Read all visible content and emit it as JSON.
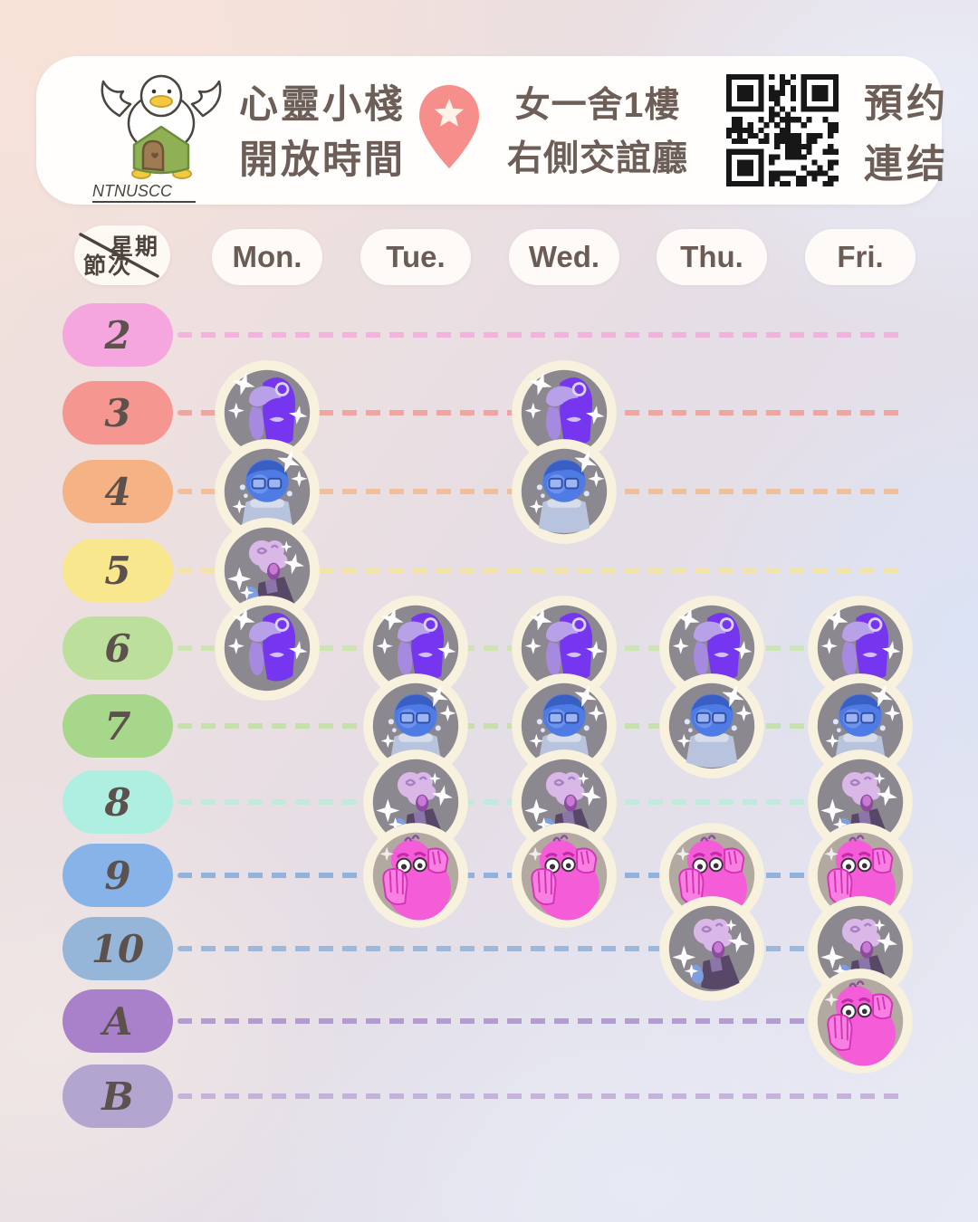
{
  "header": {
    "logo": {
      "text": "NTNUSCC",
      "icon": "duck-on-house-logo"
    },
    "title": {
      "line1": "心靈小棧",
      "line2": "開放時間"
    },
    "location_pin_icon": "map-pin-star-icon",
    "location": {
      "line1": "女一舍1樓",
      "line2": "右側交誼廳"
    },
    "qr_code_label": "booking-qr-code",
    "booking": {
      "line1": "預约",
      "line2": "連结"
    }
  },
  "table": {
    "corner": {
      "top_right_label": "星期",
      "bottom_left_label": "節次"
    },
    "days": [
      "Mon.",
      "Tue.",
      "Wed.",
      "Thu.",
      "Fri."
    ],
    "periods": [
      {
        "label": "2",
        "pill_color": "#f5a6de",
        "line_color": "#f3abdb"
      },
      {
        "label": "3",
        "pill_color": "#f59690",
        "line_color": "#f19b94"
      },
      {
        "label": "4",
        "pill_color": "#f5b285",
        "line_color": "#f2ba8d"
      },
      {
        "label": "5",
        "pill_color": "#f9e78e",
        "line_color": "#f4e49c"
      },
      {
        "label": "6",
        "pill_color": "#bce09b",
        "line_color": "#c8e6aa"
      },
      {
        "label": "7",
        "pill_color": "#a7d78a",
        "line_color": "#c0e1a2"
      },
      {
        "label": "8",
        "pill_color": "#aeefe1",
        "line_color": "#b9ecd9"
      },
      {
        "label": "9",
        "pill_color": "#87b3e8",
        "line_color": "#84aadb"
      },
      {
        "label": "10",
        "pill_color": "#96b6d9",
        "line_color": "#92b1d8"
      },
      {
        "label": "A",
        "pill_color": "#a981ca",
        "line_color": "#aa8fcb"
      },
      {
        "label": "B",
        "pill_color": "#b2a5cf",
        "line_color": "#bfaad8"
      }
    ]
  },
  "characters": {
    "purple": {
      "name": "purple-character-sticker",
      "color": "#7636ef"
    },
    "blue": {
      "name": "blue-crying-character-sticker",
      "color": "#4f7ce4"
    },
    "lilac": {
      "name": "lilac-yawning-character-sticker",
      "color": "#d9b8e8"
    },
    "pink": {
      "name": "pink-worried-character-sticker",
      "color": "#f55cd7"
    }
  },
  "schedule": [
    {
      "period": "3",
      "day": "Mon.",
      "character": "purple"
    },
    {
      "period": "3",
      "day": "Wed.",
      "character": "purple"
    },
    {
      "period": "4",
      "day": "Mon.",
      "character": "blue"
    },
    {
      "period": "4",
      "day": "Wed.",
      "character": "blue"
    },
    {
      "period": "5",
      "day": "Mon.",
      "character": "lilac"
    },
    {
      "period": "6",
      "day": "Mon.",
      "character": "purple"
    },
    {
      "period": "6",
      "day": "Tue.",
      "character": "purple"
    },
    {
      "period": "6",
      "day": "Wed.",
      "character": "purple"
    },
    {
      "period": "6",
      "day": "Thu.",
      "character": "purple"
    },
    {
      "period": "6",
      "day": "Fri.",
      "character": "purple"
    },
    {
      "period": "7",
      "day": "Tue.",
      "character": "blue"
    },
    {
      "period": "7",
      "day": "Wed.",
      "character": "blue"
    },
    {
      "period": "7",
      "day": "Thu.",
      "character": "blue"
    },
    {
      "period": "7",
      "day": "Fri.",
      "character": "blue"
    },
    {
      "period": "8",
      "day": "Tue.",
      "character": "lilac"
    },
    {
      "period": "8",
      "day": "Wed.",
      "character": "lilac"
    },
    {
      "period": "8",
      "day": "Fri.",
      "character": "lilac"
    },
    {
      "period": "9",
      "day": "Tue.",
      "character": "pink"
    },
    {
      "period": "9",
      "day": "Wed.",
      "character": "pink"
    },
    {
      "period": "9",
      "day": "Thu.",
      "character": "pink"
    },
    {
      "period": "9",
      "day": "Fri.",
      "character": "pink"
    },
    {
      "period": "10",
      "day": "Thu.",
      "character": "lilac"
    },
    {
      "period": "10",
      "day": "Fri.",
      "character": "lilac"
    },
    {
      "period": "A",
      "day": "Fri.",
      "character": "pink"
    }
  ]
}
